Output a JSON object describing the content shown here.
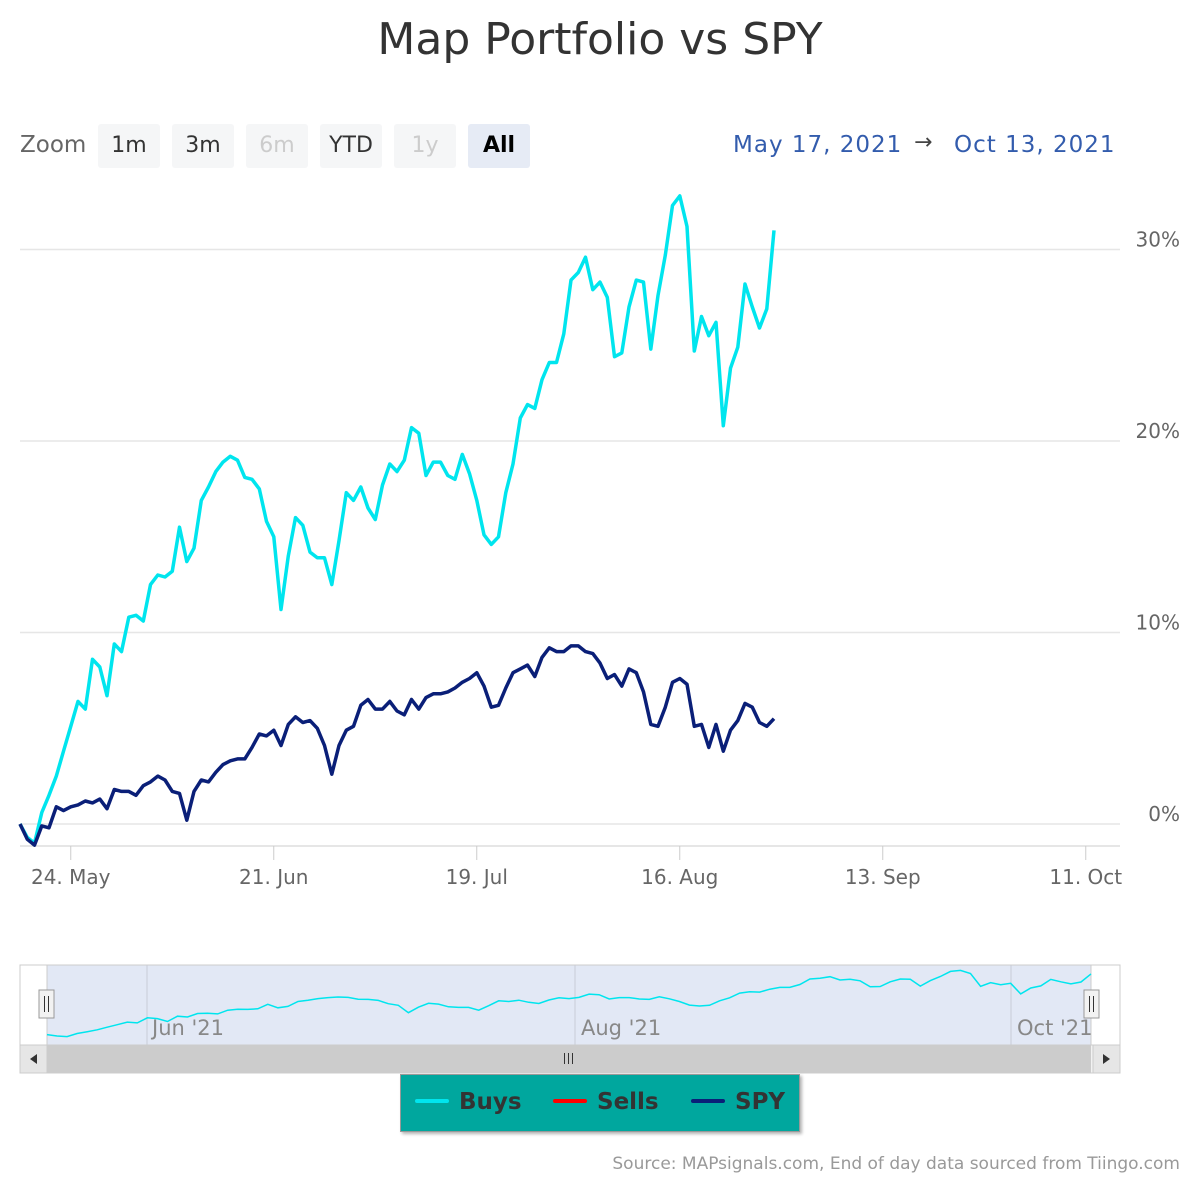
{
  "title": "Map Portfolio vs SPY",
  "zoom": {
    "label": "Zoom",
    "buttons": [
      {
        "label": "1m",
        "state": "enabled"
      },
      {
        "label": "3m",
        "state": "enabled"
      },
      {
        "label": "6m",
        "state": "disabled"
      },
      {
        "label": "YTD",
        "state": "enabled"
      },
      {
        "label": "1y",
        "state": "disabled"
      },
      {
        "label": "All",
        "state": "active"
      }
    ]
  },
  "range": {
    "from": "May 17, 2021",
    "arrow": "→",
    "to": "Oct 13, 2021"
  },
  "navigator": {
    "labels": [
      "Jun '21",
      "Aug '21",
      "Oct '21"
    ],
    "scroll_left_icon": "triangle-left-icon",
    "scroll_right_icon": "triangle-right-icon",
    "thumb_icon": "grip-lines-icon",
    "handle_icon": "handle-grip-icon"
  },
  "legend": [
    {
      "name": "Buys",
      "color": "#00e5ee"
    },
    {
      "name": "Sells",
      "color": "#ff0000"
    },
    {
      "name": "SPY",
      "color": "#0a1f78"
    }
  ],
  "credits": "Source: MAPsignals.com, End of day data sourced from Tiingo.com",
  "chart_data": {
    "type": "line",
    "title": "Map Portfolio vs SPY",
    "y_unit": "%",
    "ylim": [
      -1.2,
      34
    ],
    "y_ticks": [
      0,
      10,
      20,
      30
    ],
    "y_tick_labels": [
      "0%",
      "10%",
      "20%",
      "30%"
    ],
    "x_range_days": [
      0,
      150
    ],
    "x_ticks": [
      {
        "label": "24. May",
        "day": 7
      },
      {
        "label": "21. Jun",
        "day": 35
      },
      {
        "label": "19. Jul",
        "day": 63
      },
      {
        "label": "16. Aug",
        "day": 91
      },
      {
        "label": "13. Sep",
        "day": 119
      },
      {
        "label": "11. Oct",
        "day": 147
      }
    ],
    "grid": true,
    "series": [
      {
        "name": "Buys",
        "color": "#00e5ee",
        "points": [
          [
            0,
            0
          ],
          [
            1,
            -0.7
          ],
          [
            2,
            -1
          ],
          [
            3,
            0.6
          ],
          [
            4,
            1.5
          ],
          [
            5,
            2.5
          ],
          [
            6,
            3.8
          ],
          [
            7,
            5.1
          ],
          [
            8,
            6.4
          ],
          [
            9,
            6
          ],
          [
            10,
            8.6
          ],
          [
            11,
            8.2
          ],
          [
            12,
            6.7
          ],
          [
            13,
            9.4
          ],
          [
            14,
            9
          ],
          [
            15,
            10.8
          ],
          [
            16,
            10.9
          ],
          [
            17,
            10.6
          ],
          [
            18,
            12.5
          ],
          [
            19,
            13
          ],
          [
            20,
            12.9
          ],
          [
            21,
            13.2
          ],
          [
            22,
            15.5
          ],
          [
            23,
            13.7
          ],
          [
            24,
            14.4
          ],
          [
            25,
            16.9
          ],
          [
            26,
            17.6
          ],
          [
            27,
            18.4
          ],
          [
            28,
            18.9
          ],
          [
            29,
            19.2
          ],
          [
            30,
            19
          ],
          [
            31,
            18.1
          ],
          [
            32,
            18
          ],
          [
            33,
            17.5
          ],
          [
            34,
            15.8
          ],
          [
            35,
            15
          ],
          [
            36,
            11.2
          ],
          [
            37,
            14
          ],
          [
            38,
            16
          ],
          [
            39,
            15.6
          ],
          [
            40,
            14.2
          ],
          [
            41,
            13.9
          ],
          [
            42,
            13.9
          ],
          [
            43,
            12.5
          ],
          [
            44,
            14.8
          ],
          [
            45,
            17.3
          ],
          [
            46,
            16.9
          ],
          [
            47,
            17.6
          ],
          [
            48,
            16.5
          ],
          [
            49,
            15.9
          ],
          [
            50,
            17.7
          ],
          [
            51,
            18.8
          ],
          [
            52,
            18.4
          ],
          [
            53,
            19
          ],
          [
            54,
            20.7
          ],
          [
            55,
            20.4
          ],
          [
            56,
            18.2
          ],
          [
            57,
            18.9
          ],
          [
            58,
            18.9
          ],
          [
            59,
            18.2
          ],
          [
            60,
            18
          ],
          [
            61,
            19.3
          ],
          [
            62,
            18.3
          ],
          [
            63,
            16.9
          ],
          [
            64,
            15.1
          ],
          [
            65,
            14.6
          ],
          [
            66,
            15
          ],
          [
            67,
            17.3
          ],
          [
            68,
            18.8
          ],
          [
            69,
            21.2
          ],
          [
            70,
            21.9
          ],
          [
            71,
            21.7
          ],
          [
            72,
            23.2
          ],
          [
            73,
            24.1
          ],
          [
            74,
            24.1
          ],
          [
            75,
            25.6
          ],
          [
            76,
            28.4
          ],
          [
            77,
            28.8
          ],
          [
            78,
            29.6
          ],
          [
            79,
            27.9
          ],
          [
            80,
            28.3
          ],
          [
            81,
            27.5
          ],
          [
            82,
            24.4
          ],
          [
            83,
            24.6
          ],
          [
            84,
            27
          ],
          [
            85,
            28.4
          ],
          [
            86,
            28.3
          ],
          [
            87,
            24.8
          ],
          [
            88,
            27.6
          ],
          [
            89,
            29.7
          ],
          [
            90,
            32.3
          ],
          [
            91,
            32.8
          ],
          [
            92,
            31.2
          ],
          [
            93,
            24.7
          ],
          [
            94,
            26.5
          ],
          [
            95,
            25.5
          ],
          [
            96,
            26.2
          ],
          [
            97,
            20.8
          ],
          [
            98,
            23.8
          ],
          [
            99,
            24.9
          ],
          [
            100,
            28.2
          ],
          [
            101,
            27
          ],
          [
            102,
            25.9
          ],
          [
            103,
            26.9
          ],
          [
            104,
            31
          ]
        ]
      },
      {
        "name": "Sells",
        "color": "#ff0000",
        "points": []
      },
      {
        "name": "SPY",
        "color": "#0a1f78",
        "points": [
          [
            0,
            0
          ],
          [
            1,
            -0.8
          ],
          [
            2,
            -1.1
          ],
          [
            3,
            -0.1
          ],
          [
            4,
            -0.2
          ],
          [
            5,
            0.9
          ],
          [
            6,
            0.7
          ],
          [
            7,
            0.9
          ],
          [
            8,
            1
          ],
          [
            9,
            1.2
          ],
          [
            10,
            1.1
          ],
          [
            11,
            1.3
          ],
          [
            12,
            0.8
          ],
          [
            13,
            1.8
          ],
          [
            14,
            1.7
          ],
          [
            15,
            1.7
          ],
          [
            16,
            1.5
          ],
          [
            17,
            2
          ],
          [
            18,
            2.2
          ],
          [
            19,
            2.5
          ],
          [
            20,
            2.3
          ],
          [
            21,
            1.7
          ],
          [
            22,
            1.6
          ],
          [
            23,
            0.2
          ],
          [
            24,
            1.7
          ],
          [
            25,
            2.3
          ],
          [
            26,
            2.2
          ],
          [
            27,
            2.7
          ],
          [
            28,
            3.1
          ],
          [
            29,
            3.3
          ],
          [
            30,
            3.4
          ],
          [
            31,
            3.4
          ],
          [
            32,
            4
          ],
          [
            33,
            4.7
          ],
          [
            34,
            4.6
          ],
          [
            35,
            4.9
          ],
          [
            36,
            4.1
          ],
          [
            37,
            5.2
          ],
          [
            38,
            5.6
          ],
          [
            39,
            5.3
          ],
          [
            40,
            5.4
          ],
          [
            41,
            5
          ],
          [
            42,
            4.1
          ],
          [
            43,
            2.6
          ],
          [
            44,
            4.1
          ],
          [
            45,
            4.9
          ],
          [
            46,
            5.1
          ],
          [
            47,
            6.2
          ],
          [
            48,
            6.5
          ],
          [
            49,
            6
          ],
          [
            50,
            6
          ],
          [
            51,
            6.4
          ],
          [
            52,
            5.9
          ],
          [
            53,
            5.7
          ],
          [
            54,
            6.5
          ],
          [
            55,
            6
          ],
          [
            56,
            6.6
          ],
          [
            57,
            6.8
          ],
          [
            58,
            6.8
          ],
          [
            59,
            6.9
          ],
          [
            60,
            7.1
          ],
          [
            61,
            7.4
          ],
          [
            62,
            7.6
          ],
          [
            63,
            7.9
          ],
          [
            64,
            7.2
          ],
          [
            65,
            6.1
          ],
          [
            66,
            6.2
          ],
          [
            67,
            7.1
          ],
          [
            68,
            7.9
          ],
          [
            69,
            8.1
          ],
          [
            70,
            8.3
          ],
          [
            71,
            7.7
          ],
          [
            72,
            8.7
          ],
          [
            73,
            9.2
          ],
          [
            74,
            9
          ],
          [
            75,
            9
          ],
          [
            76,
            9.3
          ],
          [
            77,
            9.3
          ],
          [
            78,
            9
          ],
          [
            79,
            8.9
          ],
          [
            80,
            8.4
          ],
          [
            81,
            7.6
          ],
          [
            82,
            7.8
          ],
          [
            83,
            7.2
          ],
          [
            84,
            8.1
          ],
          [
            85,
            7.9
          ],
          [
            86,
            6.9
          ],
          [
            87,
            5.2
          ],
          [
            88,
            5.1
          ],
          [
            89,
            6.1
          ],
          [
            90,
            7.4
          ],
          [
            91,
            7.6
          ],
          [
            92,
            7.3
          ],
          [
            93,
            5.1
          ],
          [
            94,
            5.2
          ],
          [
            95,
            4
          ],
          [
            96,
            5.2
          ],
          [
            97,
            3.8
          ],
          [
            98,
            4.9
          ],
          [
            99,
            5.4
          ],
          [
            100,
            6.3
          ],
          [
            101,
            6.1
          ],
          [
            102,
            5.3
          ],
          [
            103,
            5.1
          ],
          [
            104,
            5.5
          ]
        ]
      }
    ],
    "navigator_series": "Buys"
  }
}
